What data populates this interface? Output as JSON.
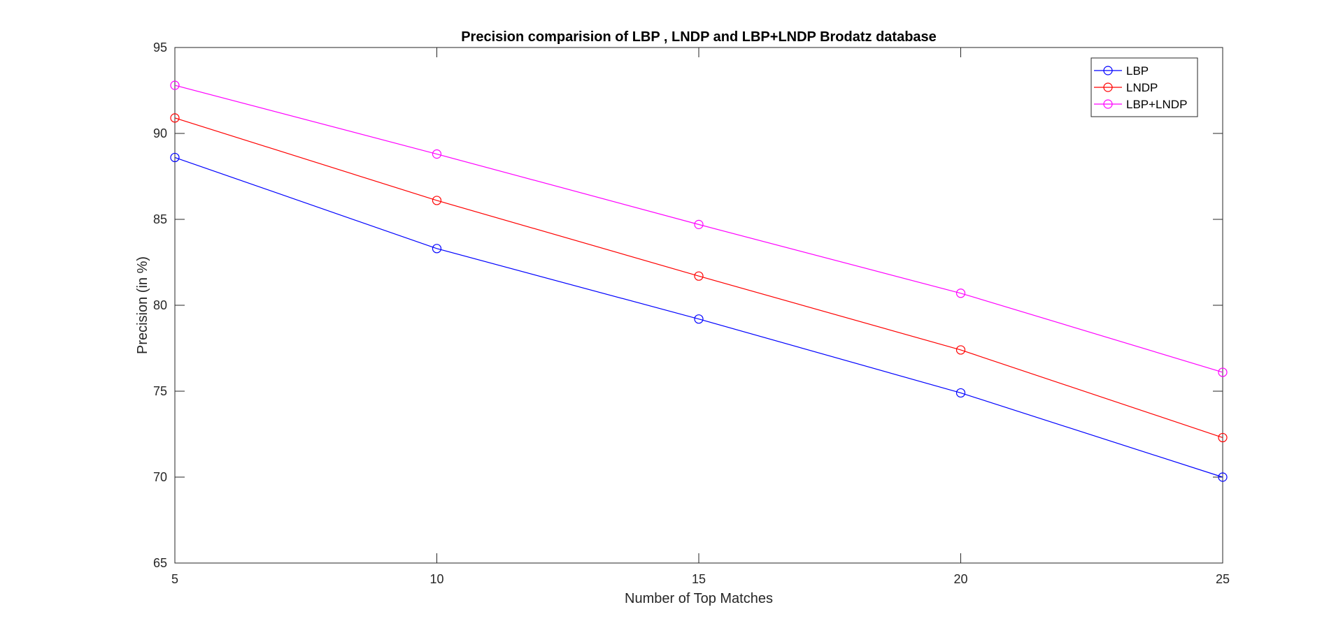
{
  "chart_data": {
    "type": "line",
    "title": "Precision comparision of LBP , LNDP and LBP+LNDP Brodatz database",
    "xlabel": "Number of Top Matches",
    "ylabel": "Precision (in %)",
    "x": [
      5,
      10,
      15,
      20,
      25
    ],
    "xlim": [
      5,
      25
    ],
    "ylim": [
      65,
      95
    ],
    "xticks": [
      "5",
      "10",
      "15",
      "20",
      "25"
    ],
    "yticks": [
      "65",
      "70",
      "75",
      "80",
      "85",
      "90",
      "95"
    ],
    "xtick_values": [
      5,
      10,
      15,
      20,
      25
    ],
    "ytick_values": [
      65,
      70,
      75,
      80,
      85,
      90,
      95
    ],
    "grid": false,
    "legend_position": "top-right",
    "marker": "circle",
    "series": [
      {
        "name": "LBP",
        "color": "#0000ff",
        "values": [
          88.6,
          83.3,
          79.2,
          74.9,
          70.0
        ]
      },
      {
        "name": "LNDP",
        "color": "#ff0000",
        "values": [
          90.9,
          86.1,
          81.7,
          77.4,
          72.3
        ]
      },
      {
        "name": "LBP+LNDP",
        "color": "#ff00ff",
        "values": [
          92.8,
          88.8,
          84.7,
          80.7,
          76.1
        ]
      }
    ]
  }
}
